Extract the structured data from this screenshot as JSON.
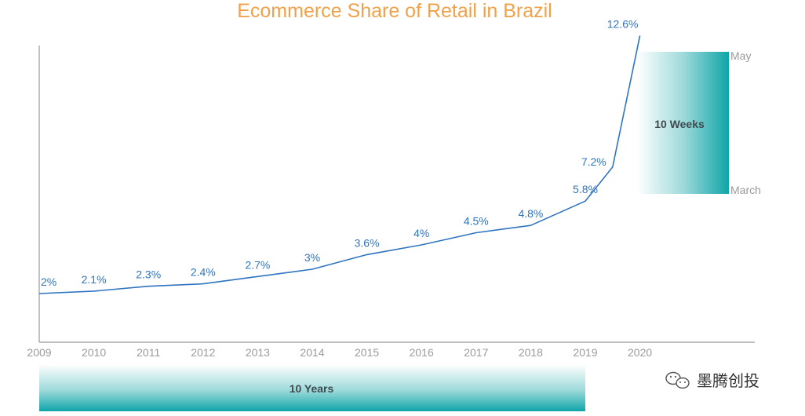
{
  "chart_data": {
    "type": "line",
    "title": "Ecommerce Share of Retail in Brazil",
    "xlabel": "",
    "ylabel": "",
    "x": [
      "2009",
      "2010",
      "2011",
      "2012",
      "2013",
      "2014",
      "2015",
      "2016",
      "2017",
      "2018",
      "2019",
      "2020"
    ],
    "points": [
      {
        "x": 2009.0,
        "value": 2.0,
        "label": "2%"
      },
      {
        "x": 2010.0,
        "value": 2.1,
        "label": "2.1%"
      },
      {
        "x": 2011.0,
        "value": 2.3,
        "label": "2.3%"
      },
      {
        "x": 2012.0,
        "value": 2.4,
        "label": "2.4%"
      },
      {
        "x": 2013.0,
        "value": 2.7,
        "label": "2.7%"
      },
      {
        "x": 2014.0,
        "value": 3.0,
        "label": "3%"
      },
      {
        "x": 2015.0,
        "value": 3.6,
        "label": "3.6%"
      },
      {
        "x": 2016.0,
        "value": 4.0,
        "label": "4%"
      },
      {
        "x": 2017.0,
        "value": 4.5,
        "label": "4.5%"
      },
      {
        "x": 2018.0,
        "value": 4.8,
        "label": "4.8%"
      },
      {
        "x": 2019.0,
        "value": 5.8,
        "label": "5.8%"
      },
      {
        "x": 2019.5,
        "value": 7.2,
        "label": "7.2%"
      },
      {
        "x": 2020.0,
        "value": 12.6,
        "label": "12.6%"
      }
    ],
    "ylim": [
      0,
      13
    ],
    "grid": false,
    "line_color": "#2f74c0",
    "axis_color": "#9a9a9a",
    "annotations": {
      "years_band": {
        "label": "10 Years",
        "from": "2009",
        "to": "2019",
        "color": "#14a7ab"
      },
      "weeks_band": {
        "label": "10 Weeks",
        "top_label": "May",
        "bottom_label": "March",
        "from_value": 7.2,
        "to_value": 12.6,
        "color": "#14a7ab"
      }
    }
  },
  "watermark": {
    "text": "墨腾创投",
    "icon": "wechat-icon"
  }
}
